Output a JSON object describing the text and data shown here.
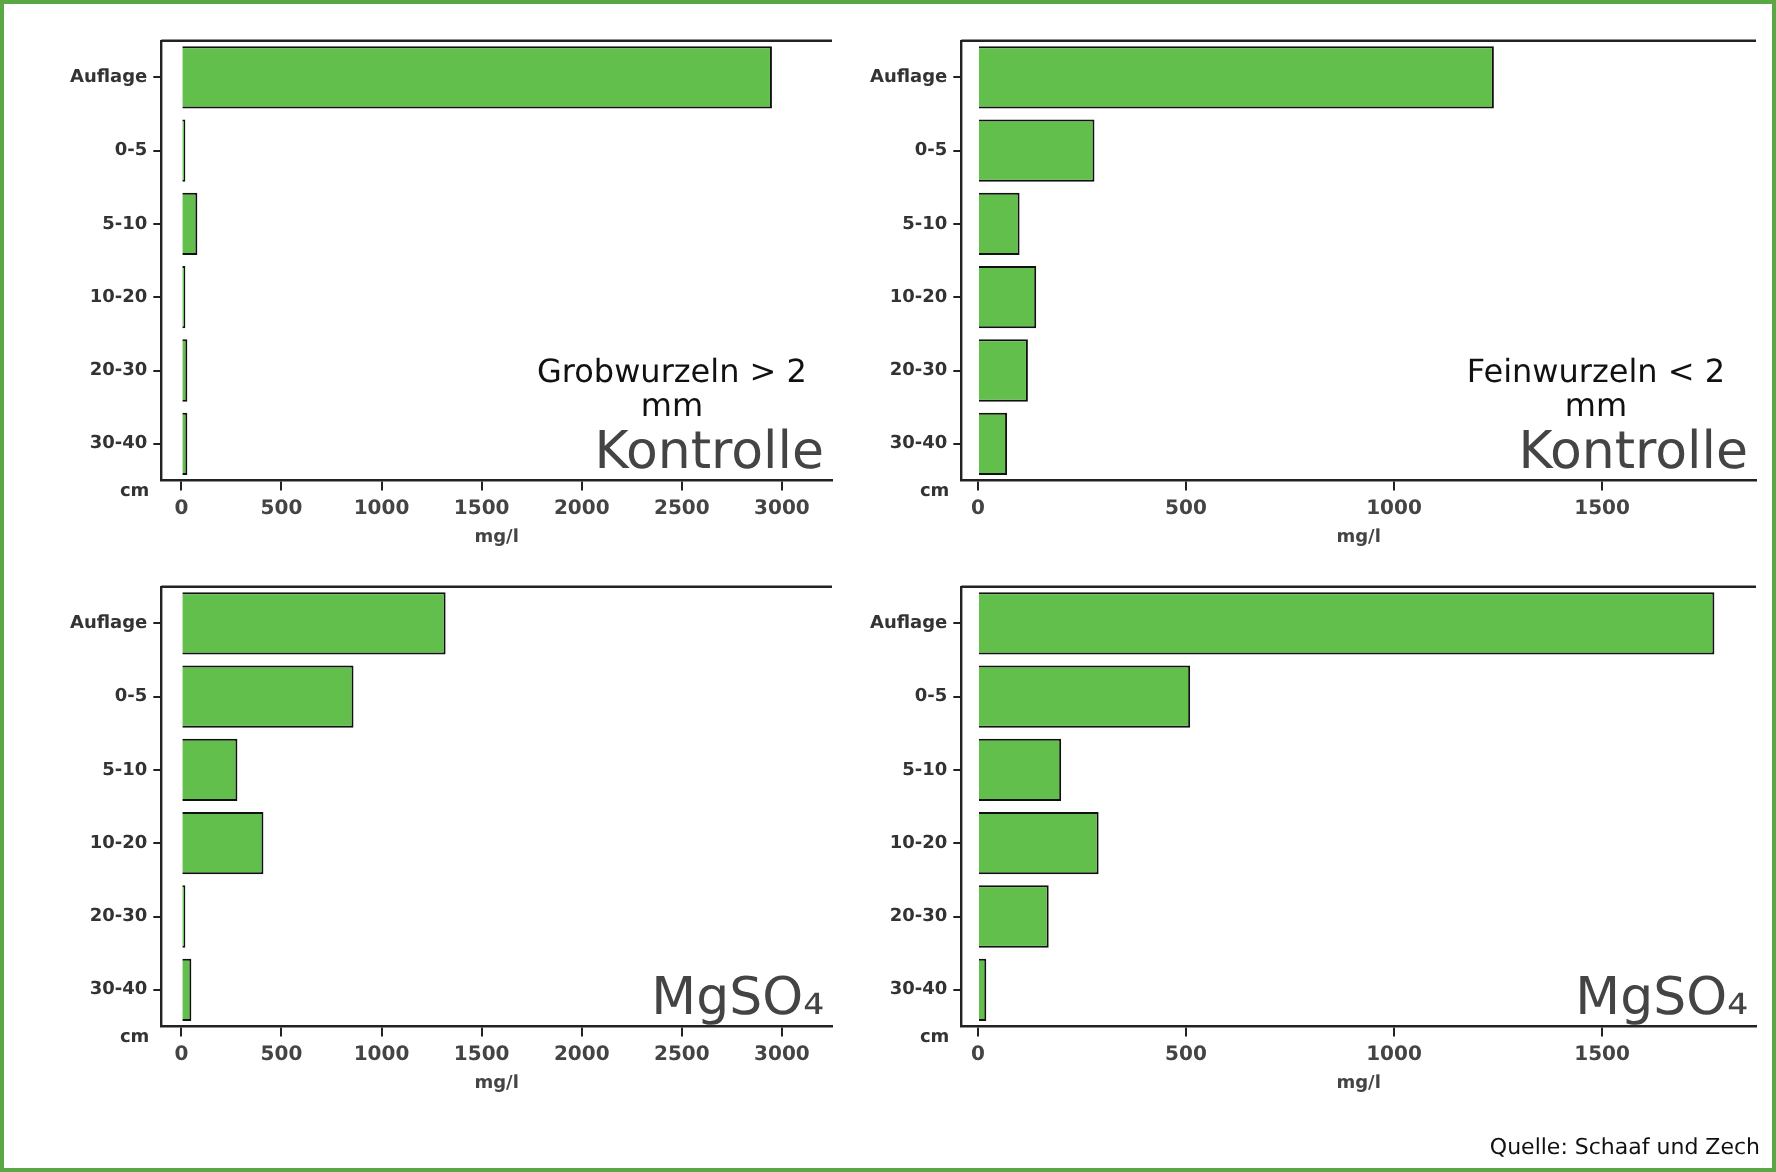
{
  "chart_data": [
    {
      "type": "bar",
      "orientation": "horizontal",
      "title": "Kontrolle",
      "subtitle": "Grobwurzeln > 2 mm",
      "xlabel": "mg/l",
      "categories": [
        "Auflage",
        "0-5",
        "5-10",
        "10-20",
        "20-30",
        "30-40"
      ],
      "values": [
        2950,
        20,
        80,
        20,
        30,
        30
      ],
      "color": "#62bf4c",
      "xlim": [
        -100,
        3250
      ],
      "xticks": [
        0,
        500,
        1000,
        1500,
        2000,
        2500,
        3000
      ],
      "grid": false,
      "annotations": [
        "cm"
      ]
    },
    {
      "type": "bar",
      "orientation": "horizontal",
      "title": "Kontrolle",
      "subtitle": "Feinwurzeln < 2 mm",
      "xlabel": "mg/l",
      "categories": [
        "Auflage",
        "0-5",
        "5-10",
        "10-20",
        "20-30",
        "30-40"
      ],
      "values": [
        1240,
        280,
        100,
        140,
        120,
        70
      ],
      "color": "#62bf4c",
      "xlim": [
        -40,
        1870
      ],
      "xticks": [
        0,
        500,
        1000,
        1500
      ],
      "grid": false,
      "annotations": [
        "cm"
      ]
    },
    {
      "type": "bar",
      "orientation": "horizontal",
      "title": "MgSO₄",
      "xlabel": "mg/l",
      "categories": [
        "Auflage",
        "0-5",
        "5-10",
        "10-20",
        "20-30",
        "30-40"
      ],
      "values": [
        1320,
        860,
        280,
        410,
        20,
        50
      ],
      "color": "#62bf4c",
      "xlim": [
        -100,
        3250
      ],
      "xticks": [
        0,
        500,
        1000,
        1500,
        2000,
        2500,
        3000
      ],
      "grid": false,
      "annotations": [
        "cm"
      ]
    },
    {
      "type": "bar",
      "orientation": "horizontal",
      "title": "MgSO₄",
      "xlabel": "mg/l",
      "categories": [
        "Auflage",
        "0-5",
        "5-10",
        "10-20",
        "20-30",
        "30-40"
      ],
      "values": [
        1770,
        510,
        200,
        290,
        170,
        20
      ],
      "color": "#62bf4c",
      "xlim": [
        -40,
        1870
      ],
      "xticks": [
        0,
        500,
        1000,
        1500
      ],
      "grid": false,
      "annotations": [
        "cm",
        "Quelle: Schaaf und Zech"
      ]
    }
  ]
}
